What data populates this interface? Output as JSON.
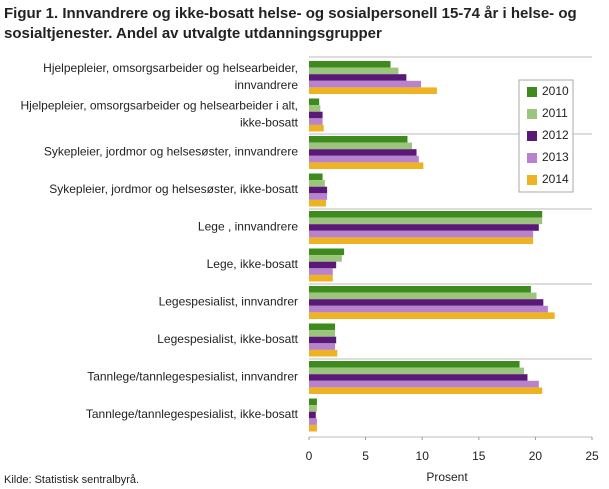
{
  "chart_data": {
    "type": "hbar",
    "title": "Figur 1. Innvandrere og ikke-bosatt helse- og sosialpersonell 15-74 år i helse- og sosialtjenester. Andel av utvalgte utdanningsgrupper",
    "categories": [
      "Hjelpepleier, omsorgsarbeider og helsearbeider, innvandrere",
      "Hjelpepleier, omsorgsarbeider og helsearbeider i alt, ikke-bosatt",
      "Sykepleier, jordmor og helsesøster, innvandrere",
      "Sykepleier, jordmor og helsesøster, ikke-bosatt",
      "Lege , innvandrere",
      "Lege, ikke-bosatt",
      "Legespesialist, innvandrer",
      "Legespesialist, ikke-bosatt",
      "Tannlege/tannlegespesialist, innvandrer",
      "Tannlege/tannlegespesialist, ikke-bosatt"
    ],
    "series": [
      {
        "name": "2010",
        "color": "#3d8b1e",
        "values": [
          7.2,
          0.9,
          8.7,
          1.2,
          20.6,
          3.1,
          19.6,
          2.3,
          18.6,
          0.7
        ]
      },
      {
        "name": "2011",
        "color": "#9cc57c",
        "values": [
          7.9,
          1.0,
          9.1,
          1.4,
          20.6,
          2.9,
          20.1,
          2.3,
          19.0,
          0.7
        ]
      },
      {
        "name": "2012",
        "color": "#5a1877",
        "values": [
          8.6,
          1.2,
          9.5,
          1.6,
          20.3,
          2.4,
          20.7,
          2.4,
          19.3,
          0.6
        ]
      },
      {
        "name": "2013",
        "color": "#b683cc",
        "values": [
          9.9,
          1.2,
          9.7,
          1.6,
          19.8,
          2.1,
          21.1,
          2.3,
          20.3,
          0.7
        ]
      },
      {
        "name": "2014",
        "color": "#efb222",
        "values": [
          11.3,
          1.3,
          10.1,
          1.5,
          19.8,
          2.1,
          21.7,
          2.5,
          20.6,
          0.7
        ]
      }
    ],
    "xlim": [
      0,
      25
    ],
    "xticks": [
      0,
      5,
      10,
      15,
      20,
      25
    ],
    "xlabel": "Prosent",
    "grid": false,
    "legend": "top-right",
    "source": "Kilde: Statistisk sentralbyrå."
  }
}
